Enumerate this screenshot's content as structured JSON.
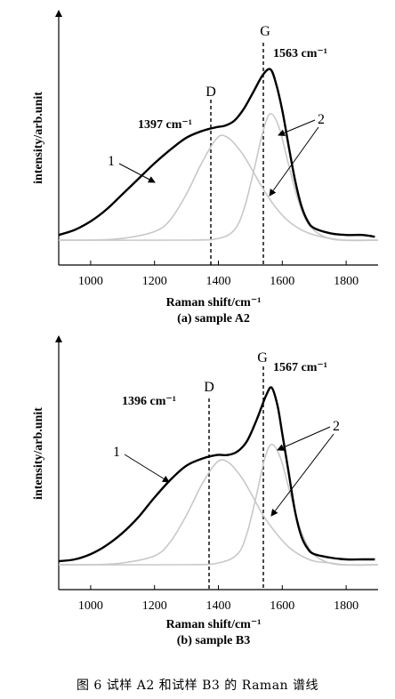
{
  "figure_caption": "图 6   试样 A2 和试样 B3 的 Raman 谱线",
  "chart_data": [
    {
      "type": "line",
      "subtitle": "(a) sample A2",
      "xlabel": "Raman shift/cm⁻¹",
      "ylabel": "intensity/arb.unit",
      "xlim": [
        900,
        1900
      ],
      "x_ticks": [
        1000,
        1200,
        1400,
        1600,
        1800
      ],
      "peak_labels": [
        {
          "name": "D",
          "position": 1397,
          "text": "1397 cm⁻¹"
        },
        {
          "name": "G",
          "position": 1563,
          "text": "1563 cm⁻¹"
        }
      ],
      "callouts": [
        "1",
        "2"
      ],
      "series": [
        {
          "name": "1",
          "style": "measured",
          "color": "#000000",
          "x": [
            900,
            950,
            1000,
            1050,
            1100,
            1150,
            1200,
            1250,
            1300,
            1350,
            1390,
            1420,
            1450,
            1480,
            1510,
            1540,
            1563,
            1580,
            1600,
            1620,
            1640,
            1660,
            1680,
            1700,
            1750,
            1800,
            1850,
            1890
          ],
          "y": [
            0.03,
            0.06,
            0.11,
            0.18,
            0.27,
            0.36,
            0.45,
            0.53,
            0.6,
            0.64,
            0.66,
            0.67,
            0.7,
            0.77,
            0.87,
            0.97,
            1.0,
            0.92,
            0.76,
            0.55,
            0.35,
            0.2,
            0.11,
            0.07,
            0.04,
            0.03,
            0.03,
            0.02
          ]
        },
        {
          "name": "D fit",
          "style": "fit",
          "color": "#c8c8c8",
          "x": [
            900,
            1000,
            1100,
            1200,
            1250,
            1300,
            1350,
            1397,
            1430,
            1470,
            1500,
            1540,
            1580,
            1620,
            1660,
            1700,
            1750,
            1800,
            1900
          ],
          "y": [
            0.0,
            0.0,
            0.01,
            0.05,
            0.12,
            0.27,
            0.46,
            0.6,
            0.6,
            0.52,
            0.43,
            0.3,
            0.19,
            0.11,
            0.06,
            0.03,
            0.01,
            0.0,
            0.0
          ]
        },
        {
          "name": "G fit",
          "style": "fit",
          "color": "#c8c8c8",
          "x": [
            900,
            1300,
            1400,
            1450,
            1480,
            1510,
            1540,
            1563,
            1590,
            1620,
            1650,
            1680,
            1720,
            1780,
            1900
          ],
          "y": [
            0.0,
            0.0,
            0.01,
            0.06,
            0.18,
            0.4,
            0.64,
            0.74,
            0.66,
            0.44,
            0.23,
            0.1,
            0.03,
            0.0,
            0.0
          ]
        }
      ]
    },
    {
      "type": "line",
      "subtitle": "(b) sample B3",
      "xlabel": "Raman shift/cm⁻¹",
      "ylabel": "intensity/arb.unit",
      "xlim": [
        900,
        1900
      ],
      "x_ticks": [
        1000,
        1200,
        1400,
        1600,
        1800
      ],
      "peak_labels": [
        {
          "name": "D",
          "position": 1396,
          "text": "1396 cm⁻¹"
        },
        {
          "name": "G",
          "position": 1567,
          "text": "1567 cm⁻¹"
        }
      ],
      "callouts": [
        "1",
        "2"
      ],
      "series": [
        {
          "name": "1",
          "style": "measured",
          "color": "#000000",
          "x": [
            900,
            950,
            1000,
            1050,
            1100,
            1150,
            1200,
            1250,
            1300,
            1350,
            1396,
            1430,
            1460,
            1490,
            1520,
            1550,
            1567,
            1585,
            1600,
            1620,
            1640,
            1660,
            1680,
            1700,
            1750,
            1800,
            1850,
            1890
          ],
          "y": [
            0.02,
            0.03,
            0.06,
            0.11,
            0.18,
            0.27,
            0.38,
            0.48,
            0.56,
            0.6,
            0.62,
            0.62,
            0.64,
            0.7,
            0.82,
            0.96,
            1.0,
            0.9,
            0.74,
            0.52,
            0.3,
            0.16,
            0.09,
            0.06,
            0.04,
            0.03,
            0.03,
            0.03
          ]
        },
        {
          "name": "D fit",
          "style": "fit",
          "color": "#c8c8c8",
          "x": [
            900,
            1000,
            1100,
            1200,
            1250,
            1300,
            1350,
            1396,
            1430,
            1470,
            1500,
            1540,
            1580,
            1620,
            1660,
            1700,
            1750,
            1800,
            1900
          ],
          "y": [
            0.0,
            0.0,
            0.01,
            0.05,
            0.13,
            0.28,
            0.46,
            0.58,
            0.58,
            0.5,
            0.41,
            0.28,
            0.18,
            0.1,
            0.05,
            0.02,
            0.01,
            0.0,
            0.0
          ]
        },
        {
          "name": "G fit",
          "style": "fit",
          "color": "#c8c8c8",
          "x": [
            900,
            1300,
            1400,
            1460,
            1490,
            1520,
            1545,
            1567,
            1595,
            1625,
            1655,
            1685,
            1720,
            1780,
            1900
          ],
          "y": [
            0.0,
            0.0,
            0.01,
            0.06,
            0.18,
            0.4,
            0.6,
            0.68,
            0.6,
            0.4,
            0.21,
            0.09,
            0.03,
            0.0,
            0.0
          ]
        }
      ]
    }
  ]
}
